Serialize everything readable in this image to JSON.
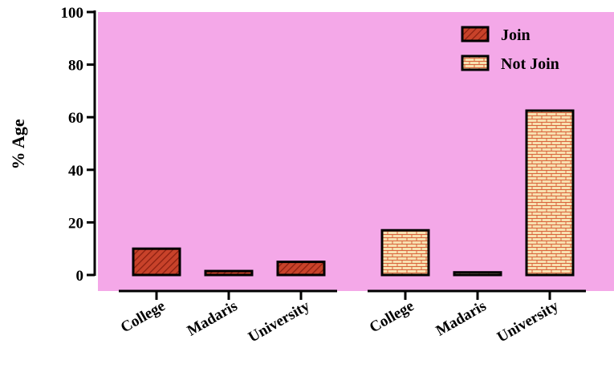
{
  "chart_data": {
    "type": "bar",
    "title": "",
    "xlabel": "",
    "ylabel": "% Age",
    "ylim": [
      0,
      100
    ],
    "yticks": [
      0,
      20,
      40,
      60,
      80,
      100
    ],
    "grid": false,
    "legend_position": "top-right",
    "plot_background": "#f4a8e8",
    "groups": [
      {
        "series": "Join",
        "categories": [
          "College",
          "Madaris",
          "University"
        ],
        "values": [
          10,
          1.5,
          5
        ]
      },
      {
        "series": "Not Join",
        "categories": [
          "College",
          "Madaris",
          "University"
        ],
        "values": [
          17,
          1,
          62.5
        ]
      }
    ],
    "series": [
      {
        "name": "Join",
        "pattern": "diagonal-hatch",
        "fill": "#c8422a",
        "stripe": "#8a1f10"
      },
      {
        "name": "Not Join",
        "pattern": "brick",
        "fill": "#f7e0b0",
        "stripe": "#d9623a"
      }
    ]
  }
}
